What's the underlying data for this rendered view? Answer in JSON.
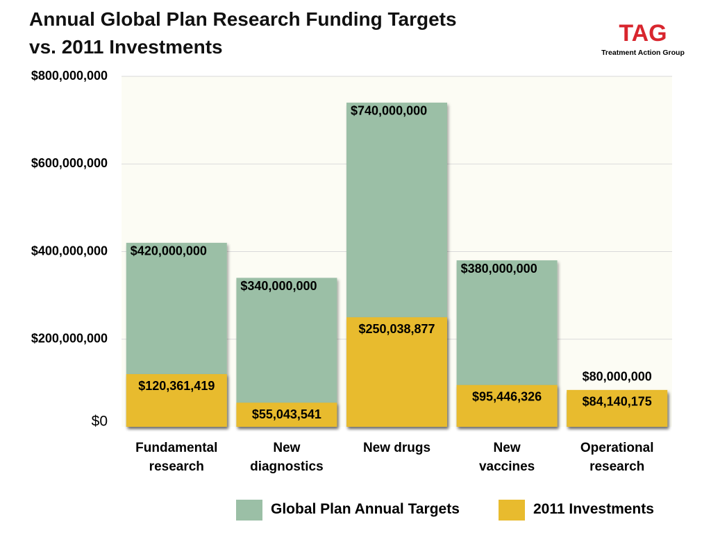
{
  "logo": {
    "mark": "TAG",
    "name": "Treatment Action Group"
  },
  "chart_data": {
    "type": "bar",
    "title": "Annual Global Plan Research Funding Targets\nvs. 2011 Investments",
    "categories": [
      "Fundamental\nresearch",
      "New\ndiagnostics",
      "New drugs",
      "New\nvaccines",
      "Operational\nresearch"
    ],
    "series": [
      {
        "name": "Global Plan Annual Targets",
        "color": "#9bbfa6",
        "values": [
          420000000,
          340000000,
          740000000,
          380000000,
          80000000
        ],
        "value_labels": [
          "$420,000,000",
          "$340,000,000",
          "$740,000,000",
          "$380,000,000",
          "$80,000,000"
        ]
      },
      {
        "name": "2011 Investments",
        "color": "#e8bb2e",
        "values": [
          120361419,
          55043541,
          250038877,
          95446326,
          84140175
        ],
        "value_labels": [
          "$120,361,419",
          "$55,043,541",
          "$250,038,877",
          "$95,446,326",
          "$84,140,175"
        ]
      }
    ],
    "ylim": [
      0,
      800000000
    ],
    "yticks": [
      {
        "value": 0,
        "label": "$0"
      },
      {
        "value": 200000000,
        "label": "$200,000,000"
      },
      {
        "value": 400000000,
        "label": "$400,000,000"
      },
      {
        "value": 600000000,
        "label": "$600,000,000"
      },
      {
        "value": 800000000,
        "label": "$800,000,000"
      }
    ],
    "grid": true
  }
}
